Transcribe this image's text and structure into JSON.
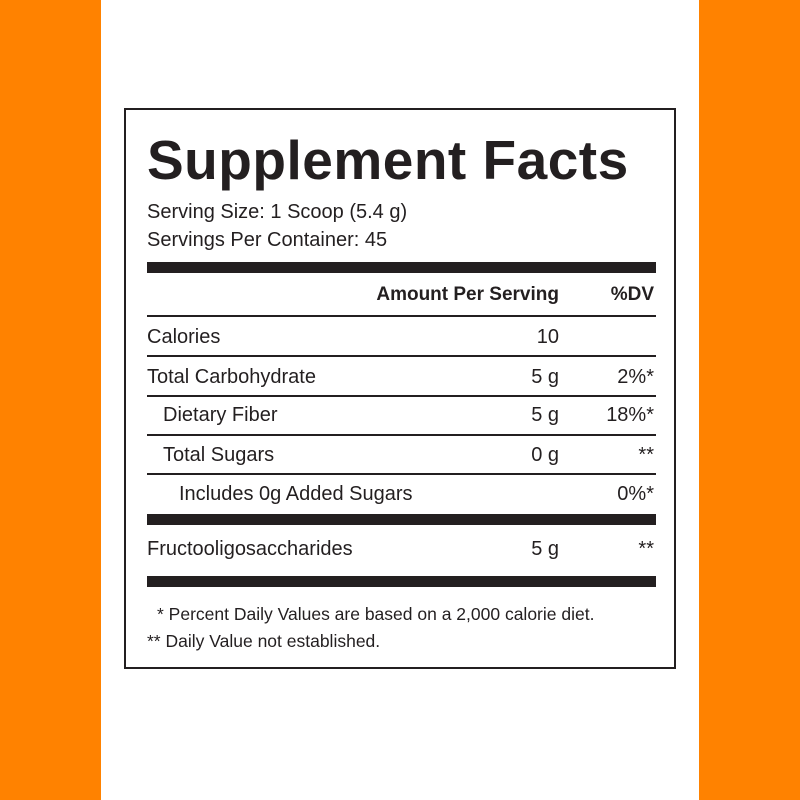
{
  "colors": {
    "side_bars": "#ff8200",
    "text": "#231f20",
    "background": "#ffffff"
  },
  "label": {
    "title": "Supplement Facts",
    "serving_size": "Serving Size: 1 Scoop (5.4 g)",
    "servings_per_container": "Servings Per Container: 45",
    "header": {
      "amount": "Amount Per Serving",
      "dv": "%DV"
    },
    "rows": [
      {
        "name": "Calories",
        "amount": "10",
        "dv": ""
      },
      {
        "name": "Total Carbohydrate",
        "amount": "5 g",
        "dv": "2%*"
      },
      {
        "name": "Dietary Fiber",
        "amount": "5 g",
        "dv": "18%*"
      },
      {
        "name": "Total Sugars",
        "amount": "0 g",
        "dv": "**"
      },
      {
        "name": "Includes 0g Added Sugars",
        "amount": "",
        "dv": "0%*"
      },
      {
        "name": "Fructooligosaccharides",
        "amount": "5 g",
        "dv": "**"
      }
    ],
    "footnotes": [
      "* Percent Daily Values are based on a 2,000 calorie diet.",
      "** Daily Value not established."
    ]
  }
}
